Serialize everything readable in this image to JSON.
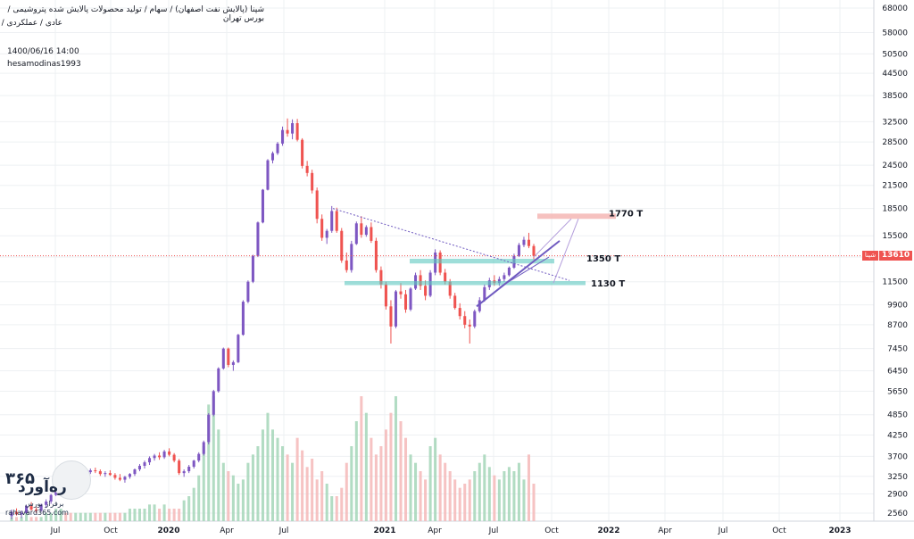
{
  "header": {
    "line1": "شپنا (پالایش نفت اصفهان) / سهام / تولید محصولات پالایش شده پتروشیمی / بورس تهران",
    "line2": "عادی / عملکردی /",
    "datetime": "1400/06/16 14:00",
    "author": "hesamodinas1993"
  },
  "price_tag": {
    "symbol": "شپنا",
    "value": "13610"
  },
  "logo": {
    "number": "۳۶۵",
    "brand": "ره‌آورد",
    "tagline": "برفراز بورس",
    "site": "rahavard365.com"
  },
  "colors": {
    "up": "#7e57c2",
    "down": "#ef5350",
    "vol_up": "#a5d6b8",
    "vol_down": "#f5b8b8",
    "zone": "#5dc8bf",
    "target_zone": "#f4b6b4",
    "trend": "#6f5ac0",
    "current_price_line": "#ef5350"
  },
  "chart_data": {
    "type": "candlestick",
    "y_scale": "log",
    "x_ticks": [
      "Jul",
      "Oct",
      "2020",
      "Apr",
      "Jul",
      "2021",
      "Apr",
      "Jul",
      "Oct",
      "2022",
      "Apr",
      "Jul",
      "Oct",
      "2023"
    ],
    "y_ticks": [
      68000,
      58000,
      50500,
      44500,
      38500,
      32500,
      28500,
      24500,
      21500,
      18500,
      15500,
      13500,
      11500,
      9900,
      8700,
      7450,
      6450,
      5650,
      4850,
      4250,
      3700,
      3250,
      2900,
      2560
    ],
    "current_price": 13610,
    "candles": [
      [
        2510,
        2620,
        2460,
        2580
      ],
      [
        2580,
        2640,
        2520,
        2540
      ],
      [
        2540,
        2600,
        2480,
        2560
      ],
      [
        2560,
        2700,
        2540,
        2680
      ],
      [
        2680,
        2750,
        2600,
        2620
      ],
      [
        2620,
        2660,
        2560,
        2600
      ],
      [
        2600,
        2720,
        2580,
        2700
      ],
      [
        2700,
        2800,
        2660,
        2760
      ],
      [
        2760,
        2900,
        2720,
        2880
      ],
      [
        2880,
        3250,
        2860,
        3200
      ],
      [
        3200,
        3350,
        3150,
        3300
      ],
      [
        3300,
        3340,
        3200,
        3220
      ],
      [
        3220,
        3300,
        3050,
        3080
      ],
      [
        3080,
        3200,
        3000,
        3160
      ],
      [
        3160,
        3320,
        3120,
        3280
      ],
      [
        3280,
        3400,
        3220,
        3340
      ],
      [
        3340,
        3420,
        3300,
        3380
      ],
      [
        3380,
        3440,
        3320,
        3360
      ],
      [
        3360,
        3400,
        3260,
        3300
      ],
      [
        3300,
        3360,
        3240,
        3320
      ],
      [
        3320,
        3380,
        3260,
        3280
      ],
      [
        3280,
        3320,
        3180,
        3220
      ],
      [
        3220,
        3300,
        3150,
        3180
      ],
      [
        3180,
        3260,
        3120,
        3240
      ],
      [
        3240,
        3320,
        3200,
        3300
      ],
      [
        3300,
        3420,
        3260,
        3400
      ],
      [
        3400,
        3520,
        3360,
        3480
      ],
      [
        3480,
        3600,
        3420,
        3560
      ],
      [
        3560,
        3700,
        3500,
        3660
      ],
      [
        3660,
        3760,
        3600,
        3720
      ],
      [
        3720,
        3800,
        3620,
        3680
      ],
      [
        3680,
        3860,
        3640,
        3820
      ],
      [
        3820,
        3900,
        3700,
        3740
      ],
      [
        3740,
        3780,
        3560,
        3600
      ],
      [
        3600,
        3640,
        3280,
        3320
      ],
      [
        3320,
        3400,
        3240,
        3360
      ],
      [
        3360,
        3500,
        3320,
        3460
      ],
      [
        3460,
        3620,
        3420,
        3600
      ],
      [
        3600,
        3800,
        3560,
        3760
      ],
      [
        3760,
        4100,
        3720,
        4060
      ],
      [
        4060,
        4900,
        4000,
        4850
      ],
      [
        4850,
        5700,
        4800,
        5650
      ],
      [
        5650,
        6600,
        5600,
        6550
      ],
      [
        6550,
        7500,
        6500,
        7450
      ],
      [
        7450,
        7500,
        6600,
        6700
      ],
      [
        6700,
        6900,
        6450,
        6820
      ],
      [
        6820,
        8200,
        6780,
        8150
      ],
      [
        8150,
        10200,
        8100,
        10100
      ],
      [
        10100,
        11600,
        10000,
        11500
      ],
      [
        11500,
        13700,
        11400,
        13600
      ],
      [
        13600,
        17000,
        13500,
        16900
      ],
      [
        16900,
        21000,
        16800,
        20900
      ],
      [
        20900,
        25500,
        20800,
        25300
      ],
      [
        25300,
        26800,
        24800,
        26500
      ],
      [
        26500,
        28500,
        26200,
        28200
      ],
      [
        28200,
        31500,
        27800,
        30800
      ],
      [
        30800,
        33200,
        29500,
        30100
      ],
      [
        30100,
        33000,
        29000,
        32200
      ],
      [
        32200,
        33100,
        28600,
        28900
      ],
      [
        28900,
        29200,
        24000,
        24400
      ],
      [
        24400,
        25200,
        22800,
        23300
      ],
      [
        23300,
        23800,
        20400,
        20800
      ],
      [
        20800,
        21200,
        16800,
        17300
      ],
      [
        17300,
        17800,
        15000,
        15300
      ],
      [
        15300,
        16200,
        14700,
        16000
      ],
      [
        16000,
        18800,
        15800,
        18200
      ],
      [
        18200,
        18600,
        15800,
        16000
      ],
      [
        16000,
        16300,
        13000,
        13200
      ],
      [
        13200,
        13900,
        12200,
        12400
      ],
      [
        12400,
        15000,
        12200,
        14700
      ],
      [
        14700,
        17000,
        14600,
        16800
      ],
      [
        16800,
        17600,
        15300,
        15600
      ],
      [
        15600,
        16600,
        15400,
        16400
      ],
      [
        16400,
        16900,
        14800,
        15000
      ],
      [
        15000,
        15300,
        12200,
        12400
      ],
      [
        12400,
        12700,
        11000,
        11300
      ],
      [
        11300,
        11500,
        9600,
        9800
      ],
      [
        9800,
        10200,
        7700,
        8600
      ],
      [
        8600,
        10900,
        8500,
        10800
      ],
      [
        10800,
        11400,
        10300,
        10600
      ],
      [
        10600,
        10900,
        9400,
        9600
      ],
      [
        9600,
        11100,
        9500,
        11000
      ],
      [
        11000,
        12200,
        10900,
        12000
      ],
      [
        12000,
        12400,
        10900,
        11200
      ],
      [
        11200,
        11600,
        10200,
        10500
      ],
      [
        10500,
        12400,
        10400,
        12200
      ],
      [
        12200,
        14200,
        12000,
        13900
      ],
      [
        13900,
        14100,
        12000,
        12200
      ],
      [
        12200,
        12500,
        11300,
        11500
      ],
      [
        11500,
        11700,
        10300,
        10500
      ],
      [
        10500,
        10700,
        9600,
        9700
      ],
      [
        9700,
        10000,
        9000,
        9200
      ],
      [
        9200,
        9500,
        8500,
        8700
      ],
      [
        8700,
        9000,
        7700,
        8600
      ],
      [
        8600,
        9600,
        8500,
        9500
      ],
      [
        9500,
        10400,
        9400,
        10200
      ],
      [
        10200,
        11300,
        10100,
        11100
      ],
      [
        11100,
        11800,
        10900,
        11600
      ],
      [
        11600,
        12000,
        11200,
        11400
      ],
      [
        11400,
        11900,
        11200,
        11700
      ],
      [
        11700,
        12200,
        11500,
        12000
      ],
      [
        12000,
        12700,
        11900,
        12600
      ],
      [
        12600,
        13800,
        12500,
        13600
      ],
      [
        13600,
        14800,
        13500,
        14600
      ],
      [
        14600,
        15400,
        14400,
        15100
      ],
      [
        15100,
        15800,
        14300,
        14500
      ],
      [
        14500,
        14700,
        13300,
        13610
      ]
    ],
    "volume_up_flags": [
      1,
      0,
      1,
      1,
      0,
      0,
      1,
      1,
      1,
      1,
      1,
      0,
      0,
      1,
      1,
      1,
      1,
      0,
      0,
      1,
      0,
      0,
      0,
      1,
      1,
      1,
      1,
      1,
      1,
      1,
      0,
      1,
      0,
      0,
      0,
      1,
      1,
      1,
      1,
      1,
      1,
      1,
      1,
      1,
      0,
      1,
      1,
      1,
      1,
      1,
      1,
      1,
      1,
      1,
      1,
      1,
      0,
      1,
      0,
      0,
      0,
      0,
      0,
      0,
      1,
      1,
      0,
      0,
      0,
      1,
      1,
      0,
      1,
      0,
      0,
      0,
      0,
      0,
      1,
      0,
      0,
      1,
      1,
      0,
      0,
      1,
      1,
      0,
      0,
      0,
      0,
      0,
      0,
      0,
      1,
      1,
      1,
      1,
      0,
      1,
      1,
      1,
      1,
      1,
      1,
      0,
      0
    ],
    "volumes": [
      1,
      1,
      1,
      2,
      1,
      1,
      1,
      2,
      2,
      3,
      3,
      2,
      2,
      2,
      2,
      2,
      2,
      2,
      2,
      2,
      2,
      2,
      2,
      2,
      3,
      3,
      3,
      3,
      4,
      4,
      3,
      4,
      3,
      3,
      3,
      5,
      6,
      8,
      11,
      18,
      28,
      30,
      22,
      14,
      12,
      11,
      9,
      10,
      14,
      16,
      18,
      22,
      26,
      22,
      20,
      18,
      16,
      14,
      20,
      17,
      13,
      15,
      10,
      12,
      9,
      6,
      6,
      8,
      14,
      18,
      24,
      30,
      26,
      20,
      16,
      18,
      22,
      26,
      30,
      24,
      20,
      16,
      14,
      12,
      10,
      18,
      20,
      16,
      14,
      12,
      10,
      8,
      9,
      10,
      12,
      14,
      16,
      13,
      11,
      10,
      12,
      13,
      12,
      14,
      10,
      16,
      9
    ],
    "annotations": {
      "resistance_zone_1350": {
        "label": "1350 T",
        "price_low": 12950,
        "price_high": 13350
      },
      "support_zone_1130": {
        "label": "1130 T",
        "price_low": 11250,
        "price_high": 11550
      },
      "target_zone_1770": {
        "label": "1770 T",
        "price_low": 17300,
        "price_high": 17900
      }
    }
  }
}
